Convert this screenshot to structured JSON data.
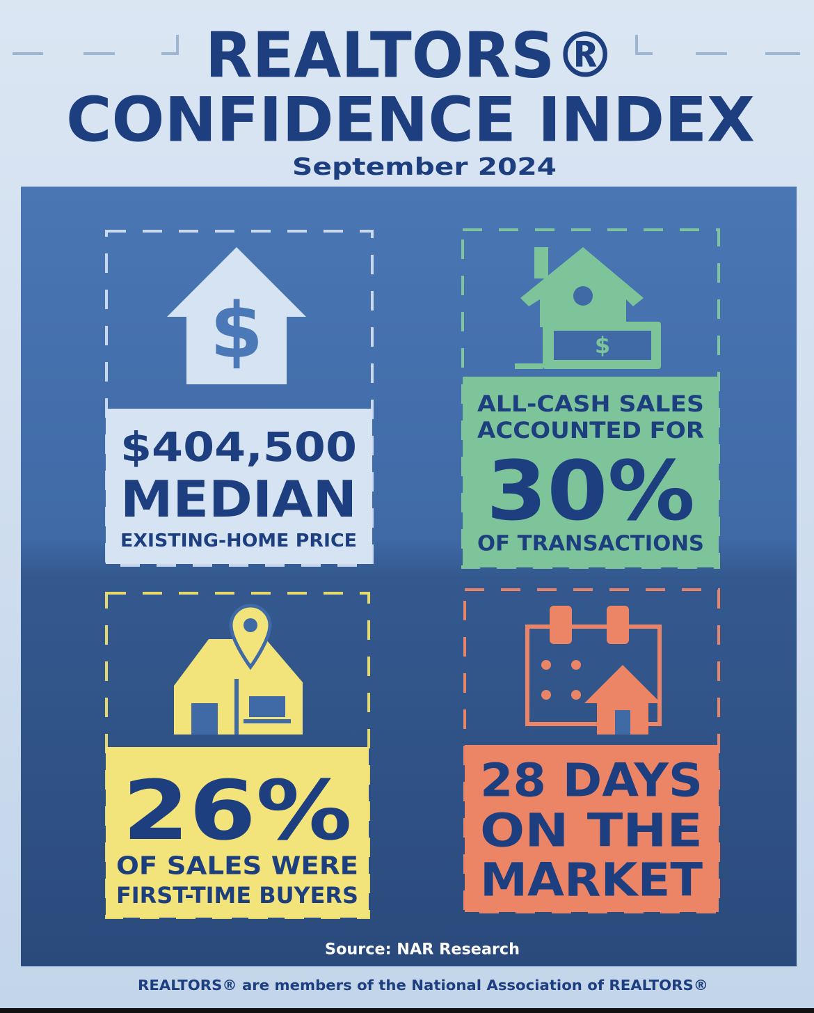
{
  "header": {
    "title_line1": "REALTORS®",
    "title_line2": "CONFIDENCE INDEX",
    "subtitle": "September 2024"
  },
  "cards": [
    {
      "lines": [
        "$404,500",
        "MEDIAN",
        "EXISTING-HOME PRICE"
      ]
    },
    {
      "lines": [
        "ALL-CASH SALES",
        "ACCOUNTED FOR",
        "30%",
        "OF TRANSACTIONS"
      ]
    },
    {
      "lines": [
        "26%",
        "OF SALES WERE",
        "FIRST-TIME BUYERS"
      ]
    },
    {
      "lines": [
        "28 DAYS",
        "ON THE",
        "MARKET"
      ]
    }
  ],
  "source": "Source: NAR Research",
  "footer": "REALTORS® are members of the National Association of REALTORS®"
}
